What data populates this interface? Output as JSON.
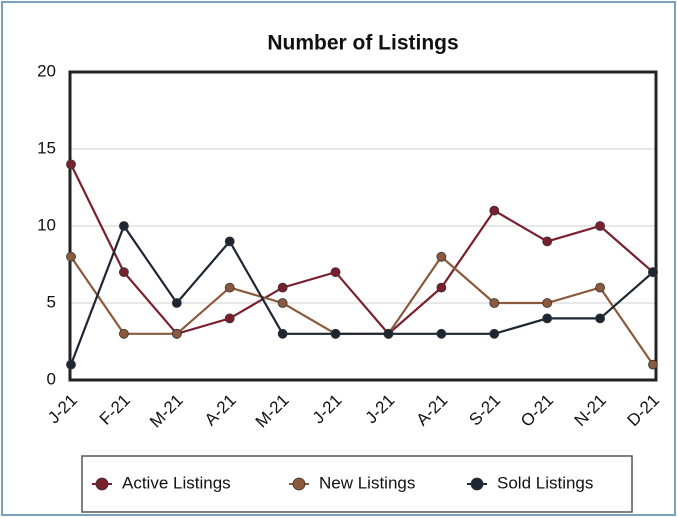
{
  "chart_data": {
    "type": "line",
    "title": "Number of Listings",
    "categories": [
      "J-21",
      "F-21",
      "M-21",
      "A-21",
      "M-21",
      "J-21",
      "J-21",
      "A-21",
      "S-21",
      "O-21",
      "N-21",
      "D-21"
    ],
    "series": [
      {
        "name": "Active Listings",
        "color": "#7a1f2e",
        "values": [
          14,
          7,
          3,
          4,
          6,
          7,
          3,
          6,
          11,
          9,
          10,
          7
        ]
      },
      {
        "name": "New Listings",
        "color": "#8b5a3c",
        "values": [
          8,
          3,
          3,
          6,
          5,
          3,
          3,
          8,
          5,
          5,
          6,
          1
        ]
      },
      {
        "name": "Sold Listings",
        "color": "#1c2733",
        "values": [
          1,
          10,
          5,
          9,
          3,
          3,
          3,
          3,
          3,
          4,
          4,
          7
        ]
      }
    ],
    "ylim": [
      0,
      20
    ],
    "yticks": [
      0,
      5,
      10,
      15,
      20
    ],
    "grid": true,
    "legend": "bottom"
  }
}
